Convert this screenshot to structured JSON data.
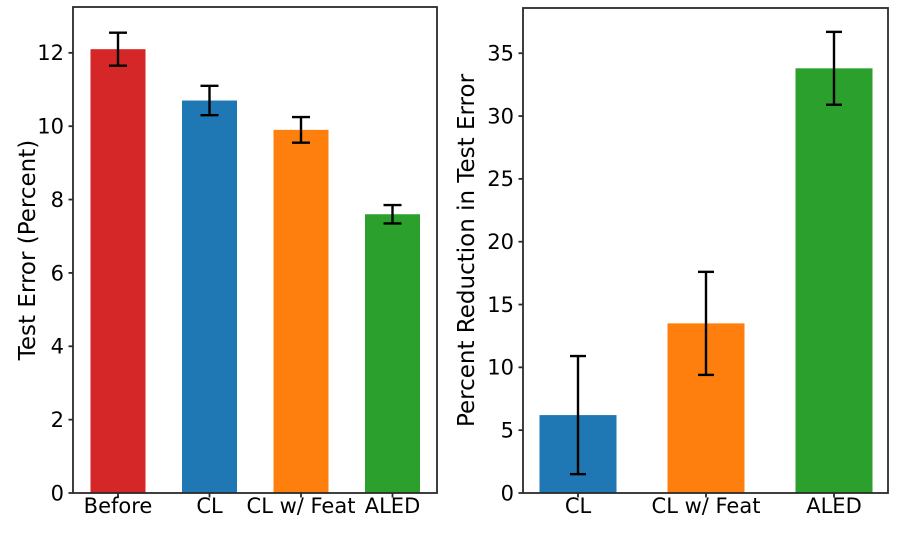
{
  "chart_data": [
    {
      "type": "bar",
      "title": "",
      "xlabel": "",
      "ylabel": "Test Error (Percent)",
      "categories": [
        "Before",
        "CL",
        "CL w/ Feat",
        "ALED"
      ],
      "values": [
        12.1,
        10.7,
        9.9,
        7.6
      ],
      "errors": [
        0.45,
        0.4,
        0.35,
        0.25
      ],
      "bar_colors": [
        "#d62728",
        "#1f77b4",
        "#ff7f0e",
        "#2ca02c"
      ],
      "yticks": [
        0,
        2,
        4,
        6,
        8,
        10,
        12
      ],
      "ylim": [
        0,
        13.25
      ],
      "grid": false,
      "legend": null
    },
    {
      "type": "bar",
      "title": "",
      "xlabel": "",
      "ylabel": "Percent Reduction in Test Error",
      "categories": [
        "CL",
        "CL w/ Feat",
        "ALED"
      ],
      "values": [
        6.2,
        13.5,
        33.8
      ],
      "errors": [
        4.7,
        4.1,
        2.9
      ],
      "bar_colors": [
        "#1f77b4",
        "#ff7f0e",
        "#2ca02c"
      ],
      "yticks": [
        0,
        5,
        10,
        15,
        20,
        25,
        30,
        35
      ],
      "ylim": [
        0,
        38.6
      ],
      "grid": false,
      "legend": null
    }
  ],
  "styles": {
    "background": "#ffffff",
    "text_color": "#000000",
    "spine_color": "#2a2a2a",
    "errorbar_color": "#000000"
  }
}
